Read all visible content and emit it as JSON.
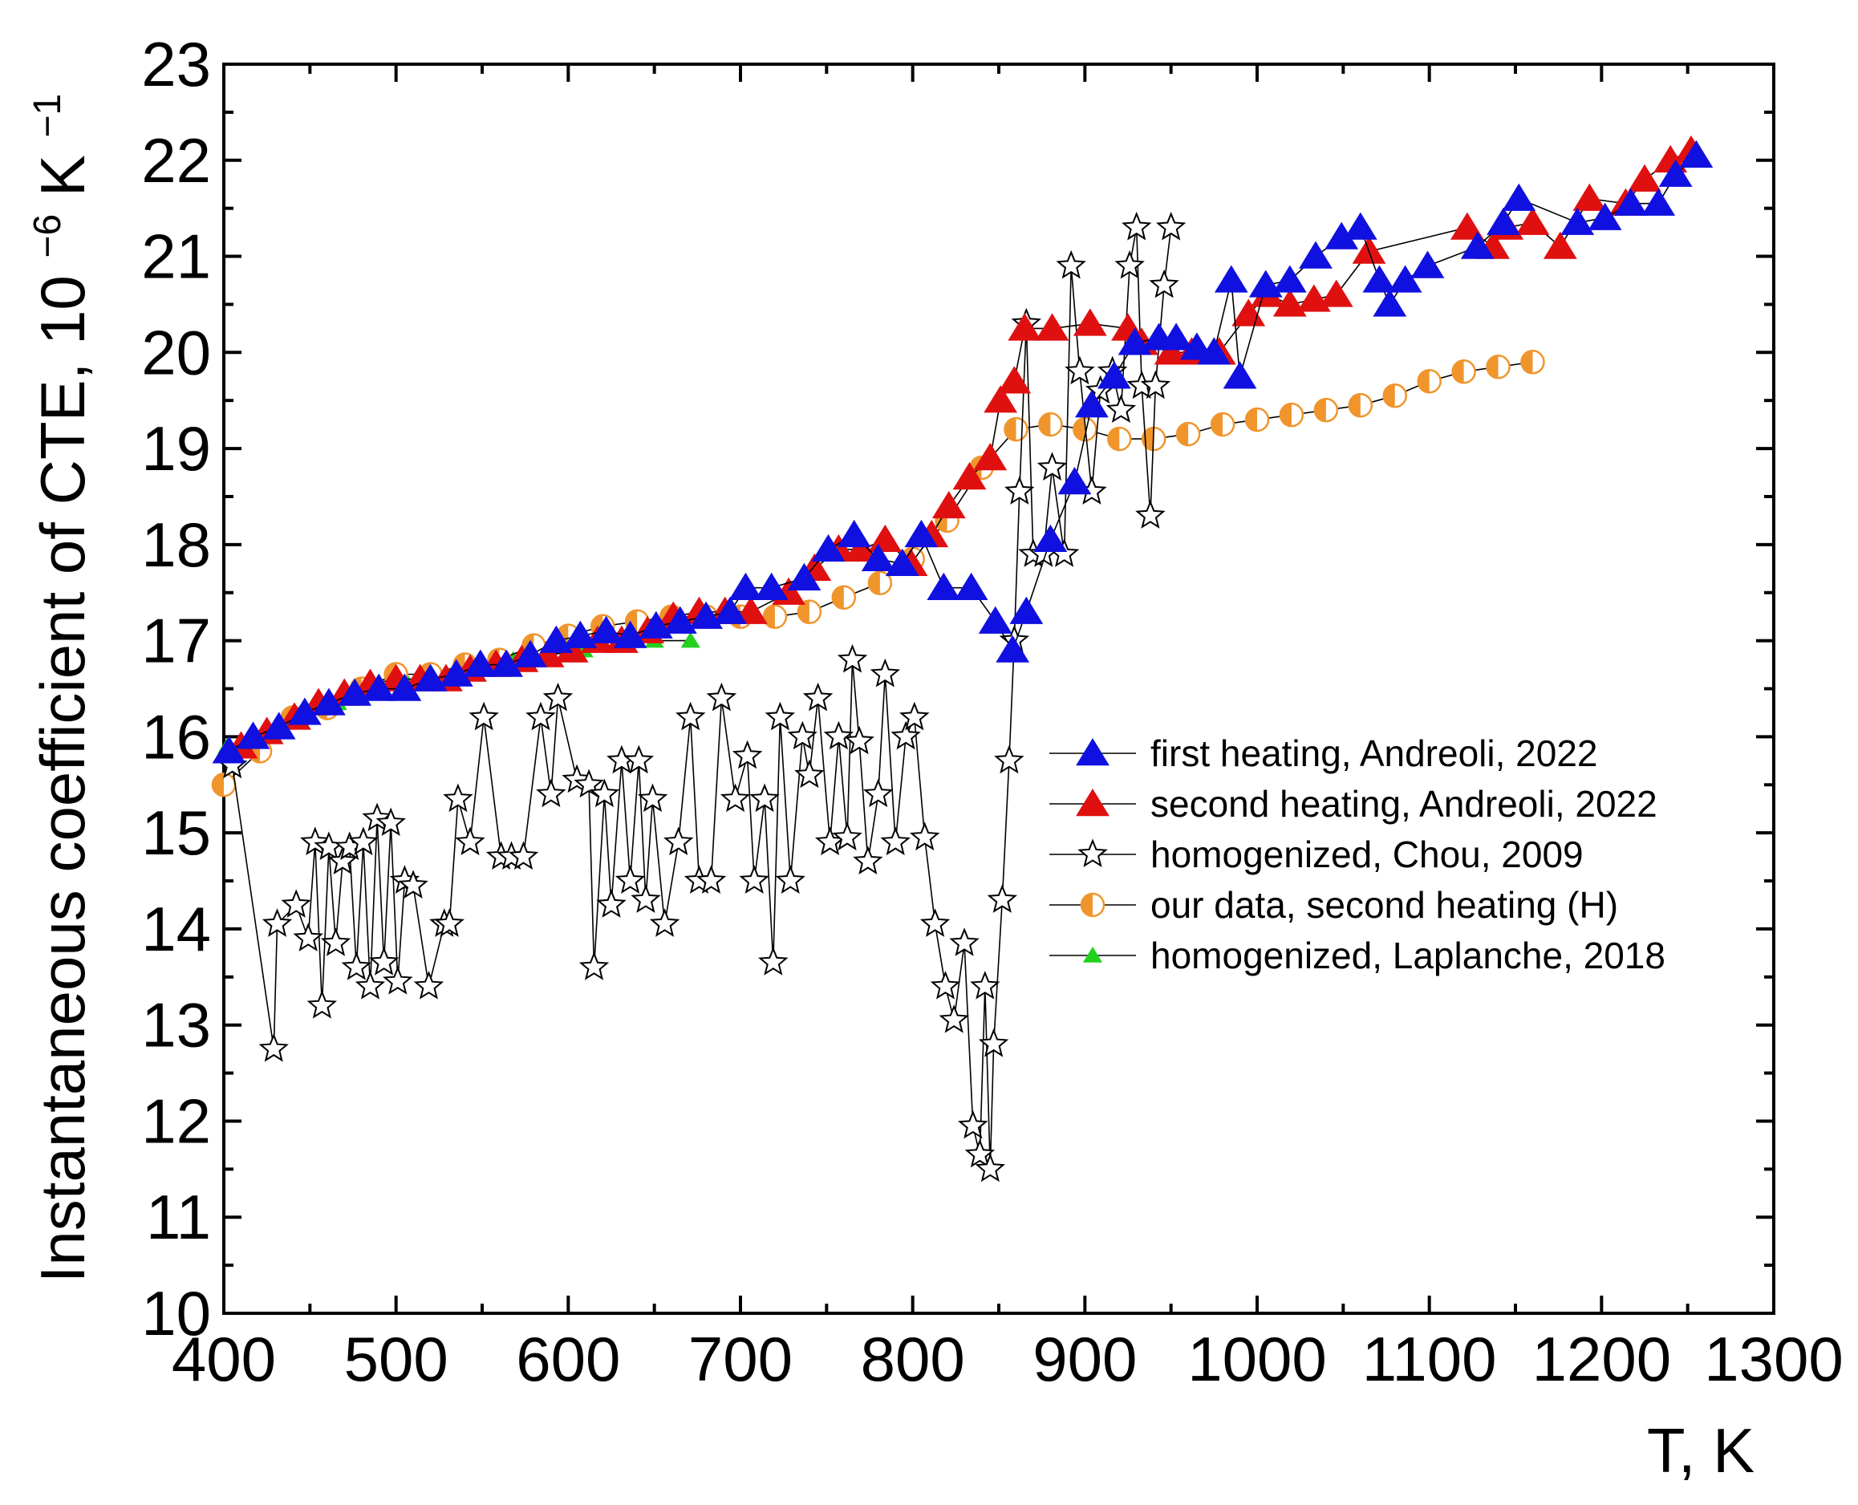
{
  "chart_data": {
    "type": "scatter",
    "title": "",
    "xlabel": "T, K",
    "ylabel_text": "Instantaneous coefficient of CTE,",
    "ylabel_unit_base": "10",
    "ylabel_unit_exp1": "−6",
    "ylabel_unit_K": "K",
    "ylabel_unit_exp2": "−1",
    "xlim": [
      400,
      1300
    ],
    "ylim": [
      10,
      23
    ],
    "xticks": [
      400,
      500,
      600,
      700,
      800,
      900,
      1000,
      1100,
      1200,
      1300
    ],
    "yticks": [
      10,
      11,
      12,
      13,
      14,
      15,
      16,
      17,
      18,
      19,
      20,
      21,
      22,
      23
    ],
    "legend_position": "center-right",
    "series": [
      {
        "name": "first heating, Andreoli, 2022",
        "marker": "triangle",
        "color": "#1010e0",
        "x": [
          403,
          417,
          432,
          447,
          461,
          476,
          490,
          505,
          520,
          535,
          549,
          564,
          578,
          593,
          607,
          622,
          636,
          651,
          665,
          680,
          694,
          703,
          718,
          737,
          751,
          766,
          780,
          794,
          805,
          818,
          834,
          848,
          858,
          866,
          880,
          894,
          904,
          917,
          929,
          943,
          953,
          965,
          975,
          985,
          990,
          1005,
          1019,
          1034,
          1049,
          1060,
          1071,
          1077,
          1086,
          1099,
          1128,
          1143,
          1152,
          1186,
          1202,
          1217,
          1233,
          1243,
          1255
        ],
        "y": [
          15.85,
          16.0,
          16.1,
          16.25,
          16.35,
          16.45,
          16.5,
          16.5,
          16.6,
          16.65,
          16.75,
          16.75,
          16.85,
          17.0,
          17.05,
          17.1,
          17.05,
          17.15,
          17.2,
          17.25,
          17.3,
          17.55,
          17.55,
          17.65,
          17.95,
          18.1,
          17.85,
          17.8,
          18.1,
          17.55,
          17.55,
          17.2,
          16.9,
          17.3,
          18.05,
          18.65,
          19.45,
          19.75,
          20.1,
          20.15,
          20.15,
          20.05,
          20.0,
          20.75,
          19.75,
          20.7,
          20.75,
          21.0,
          21.2,
          21.3,
          20.75,
          20.5,
          20.75,
          20.9,
          21.1,
          21.35,
          21.6,
          21.35,
          21.4,
          21.55,
          21.55,
          21.85,
          22.05
        ]
      },
      {
        "name": "second heating, Andreoli, 2022",
        "marker": "triangle",
        "color": "#e01010",
        "x": [
          410,
          425,
          441,
          455,
          470,
          485,
          500,
          514,
          529,
          543,
          558,
          573,
          588,
          602,
          617,
          631,
          646,
          661,
          676,
          691,
          706,
          728,
          743,
          757,
          770,
          784,
          799,
          811,
          821,
          833,
          845,
          851,
          859,
          865,
          881,
          903,
          925,
          933,
          950,
          962,
          978,
          995,
          1006,
          1019,
          1033,
          1046,
          1065,
          1122,
          1137,
          1145,
          1160,
          1176,
          1193,
          1214,
          1225,
          1240,
          1252
        ],
        "y": [
          15.9,
          16.05,
          16.2,
          16.35,
          16.45,
          16.55,
          16.6,
          16.6,
          16.6,
          16.7,
          16.75,
          16.8,
          16.85,
          16.9,
          17.0,
          17.0,
          17.1,
          17.25,
          17.3,
          17.3,
          17.3,
          17.5,
          17.75,
          17.95,
          17.95,
          18.05,
          17.8,
          18.1,
          18.4,
          18.7,
          18.9,
          19.5,
          19.7,
          20.25,
          20.25,
          20.3,
          20.25,
          20.1,
          20.0,
          20.0,
          20.0,
          20.4,
          20.6,
          20.5,
          20.55,
          20.6,
          21.05,
          21.3,
          21.1,
          21.3,
          21.35,
          21.1,
          21.6,
          21.55,
          21.8,
          22.0,
          22.1
        ]
      },
      {
        "name": "homogenized, Chou, 2009",
        "marker": "star",
        "color": "#ffffff",
        "x": [
          405,
          429,
          431,
          442,
          449,
          453,
          457,
          461,
          465,
          469,
          473,
          477,
          481,
          485,
          489,
          493,
          497,
          501,
          505,
          510,
          519,
          528,
          531,
          536,
          543,
          551,
          561,
          567,
          574,
          584,
          590,
          594,
          605,
          612,
          615,
          621,
          625,
          631,
          636,
          641,
          645,
          649,
          656,
          664,
          671,
          676,
          683,
          689,
          697,
          704,
          708,
          714,
          719,
          723,
          729,
          736,
          740,
          745,
          752,
          757,
          762,
          765,
          769,
          774,
          780,
          784,
          790,
          796,
          801,
          807,
          813,
          819,
          824,
          830,
          835,
          839,
          842,
          845,
          847,
          852,
          856,
          859,
          862,
          866,
          870,
          876,
          881,
          888,
          892,
          897,
          904,
          909,
          916,
          921,
          926,
          930,
          933,
          938,
          941,
          946,
          950
        ],
        "y": [
          15.7,
          12.75,
          14.05,
          14.25,
          13.9,
          14.9,
          13.2,
          14.85,
          13.85,
          14.7,
          14.85,
          13.6,
          14.9,
          13.4,
          15.15,
          13.65,
          15.1,
          13.45,
          14.5,
          14.45,
          13.4,
          14.05,
          14.05,
          15.35,
          14.9,
          16.2,
          14.75,
          14.75,
          14.75,
          16.2,
          15.4,
          16.4,
          15.55,
          15.5,
          13.6,
          15.4,
          14.25,
          15.75,
          14.5,
          15.75,
          14.3,
          15.35,
          14.05,
          14.9,
          16.2,
          14.5,
          14.5,
          16.4,
          15.35,
          15.8,
          14.5,
          15.35,
          13.65,
          16.2,
          14.5,
          16.0,
          15.6,
          16.4,
          14.9,
          16.0,
          14.95,
          16.8,
          15.95,
          14.7,
          15.4,
          16.65,
          14.9,
          16.0,
          16.2,
          14.95,
          14.05,
          13.4,
          13.05,
          13.85,
          11.95,
          11.65,
          13.4,
          11.5,
          12.8,
          14.3,
          15.75,
          17.0,
          18.55,
          20.3,
          17.9,
          17.9,
          18.8,
          17.9,
          20.9,
          19.8,
          18.55,
          19.6,
          19.8,
          19.4,
          20.9,
          21.3,
          19.65,
          18.3,
          19.65,
          20.7,
          21.3
        ]
      },
      {
        "name": "our data, second heating (H)",
        "marker": "half-circle",
        "color": "#f0952c",
        "x": [
          400,
          421,
          440,
          460,
          480,
          500,
          520,
          540,
          560,
          580,
          600,
          620,
          640,
          660,
          680,
          700,
          720,
          740,
          760,
          781,
          800,
          820,
          840,
          860,
          880,
          900,
          920,
          940,
          960,
          980,
          1000,
          1020,
          1040,
          1060,
          1080,
          1100,
          1120,
          1140,
          1160
        ],
        "y": [
          15.5,
          15.85,
          16.2,
          16.3,
          16.5,
          16.65,
          16.65,
          16.75,
          16.8,
          16.95,
          17.05,
          17.15,
          17.2,
          17.25,
          17.25,
          17.25,
          17.25,
          17.3,
          17.45,
          17.6,
          17.85,
          18.25,
          18.8,
          19.2,
          19.25,
          19.2,
          19.1,
          19.1,
          19.15,
          19.25,
          19.3,
          19.35,
          19.4,
          19.45,
          19.55,
          19.7,
          19.8,
          19.85,
          19.9
        ]
      },
      {
        "name": "homogenized, Laplanche, 2018",
        "marker": "triangle-small",
        "color": "#22d11d",
        "x": [
          402,
          425,
          445,
          466,
          486,
          507,
          527,
          547,
          568,
          588,
          609,
          630,
          650,
          671
        ],
        "y": [
          15.9,
          16.05,
          16.2,
          16.35,
          16.5,
          16.55,
          16.6,
          16.7,
          16.8,
          16.85,
          16.9,
          16.95,
          17.0,
          17.0
        ]
      }
    ]
  }
}
